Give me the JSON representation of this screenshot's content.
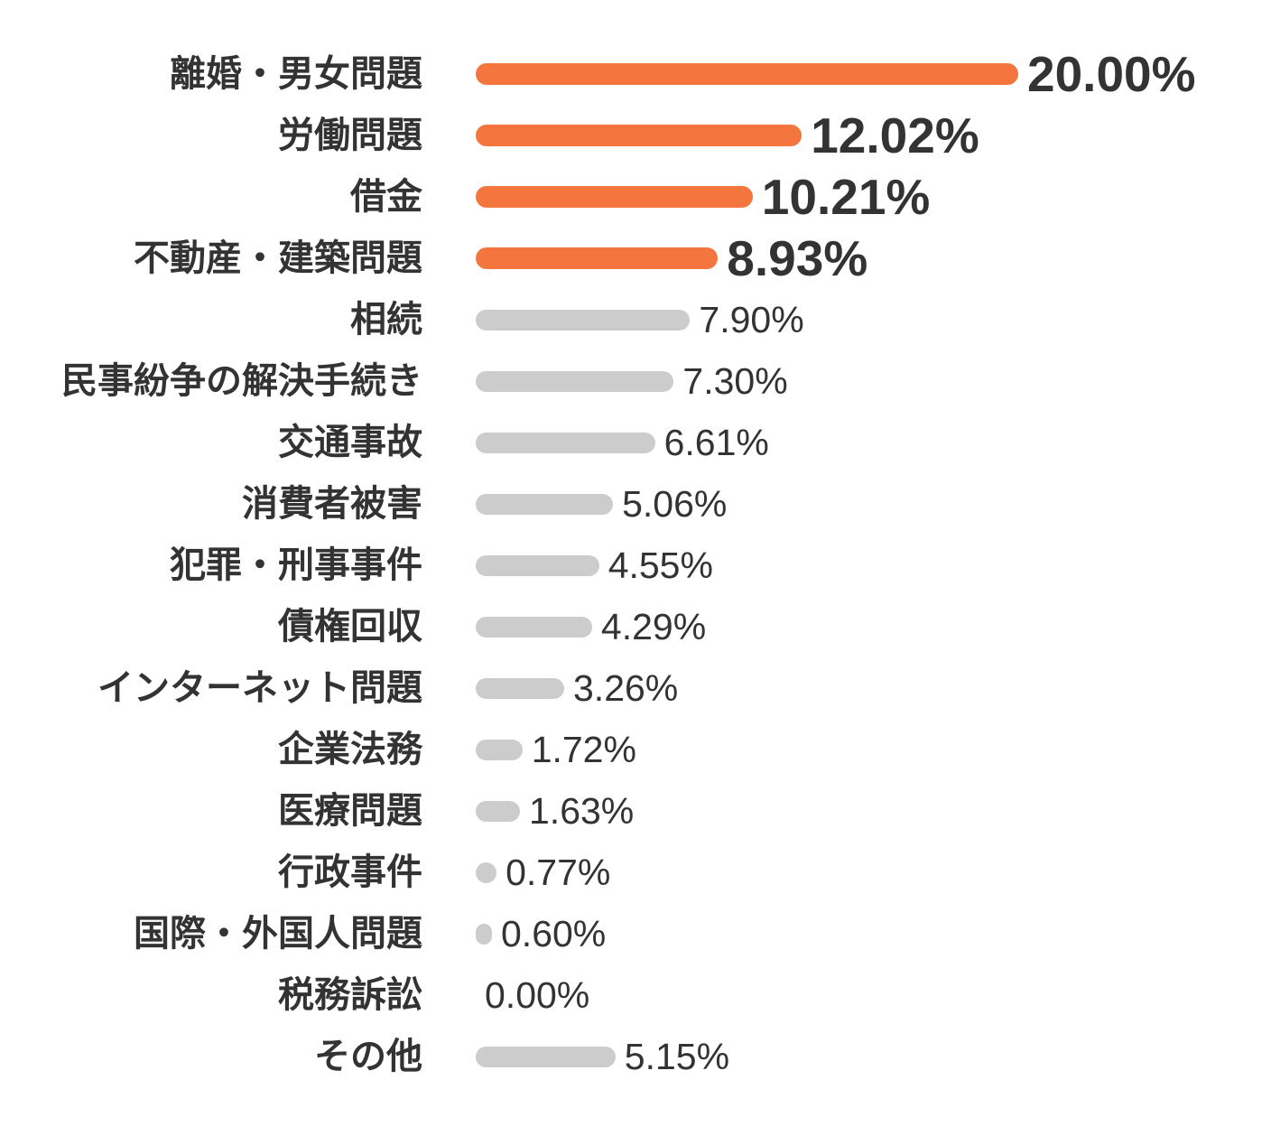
{
  "chart_data": {
    "type": "bar",
    "orientation": "horizontal",
    "unit": "%",
    "xlim": [
      0,
      20
    ],
    "grid": false,
    "legend": false,
    "colors": {
      "highlight_bar": "#f4763e",
      "bar": "#cccccc",
      "text": "#333333",
      "background": "#ffffff"
    },
    "categories": [
      "離婚・男女問題",
      "労働問題",
      "借金",
      "不動産・建築問題",
      "相続",
      "民事紛争の解決手続き",
      "交通事故",
      "消費者被害",
      "犯罪・刑事事件",
      "債権回収",
      "インターネット問題",
      "企業法務",
      "医療問題",
      "行政事件",
      "国際・外国人問題",
      "税務訴訟",
      "その他"
    ],
    "values": [
      20.0,
      12.02,
      10.21,
      8.93,
      7.9,
      7.3,
      6.61,
      5.06,
      4.55,
      4.29,
      3.26,
      1.72,
      1.63,
      0.77,
      0.6,
      0.0,
      5.15
    ],
    "items": [
      {
        "label": "離婚・男女問題",
        "value": 20.0,
        "display": "20.00%",
        "highlight": true
      },
      {
        "label": "労働問題",
        "value": 12.02,
        "display": "12.02%",
        "highlight": true
      },
      {
        "label": "借金",
        "value": 10.21,
        "display": "10.21%",
        "highlight": true
      },
      {
        "label": "不動産・建築問題",
        "value": 8.93,
        "display": "8.93%",
        "highlight": true
      },
      {
        "label": "相続",
        "value": 7.9,
        "display": "7.90%",
        "highlight": false
      },
      {
        "label": "民事紛争の解決手続き",
        "value": 7.3,
        "display": "7.30%",
        "highlight": false
      },
      {
        "label": "交通事故",
        "value": 6.61,
        "display": "6.61%",
        "highlight": false
      },
      {
        "label": "消費者被害",
        "value": 5.06,
        "display": "5.06%",
        "highlight": false
      },
      {
        "label": "犯罪・刑事事件",
        "value": 4.55,
        "display": "4.55%",
        "highlight": false
      },
      {
        "label": "債権回収",
        "value": 4.29,
        "display": "4.29%",
        "highlight": false
      },
      {
        "label": "インターネット問題",
        "value": 3.26,
        "display": "3.26%",
        "highlight": false
      },
      {
        "label": "企業法務",
        "value": 1.72,
        "display": "1.72%",
        "highlight": false
      },
      {
        "label": "医療問題",
        "value": 1.63,
        "display": "1.63%",
        "highlight": false
      },
      {
        "label": "行政事件",
        "value": 0.77,
        "display": "0.77%",
        "highlight": false
      },
      {
        "label": "国際・外国人問題",
        "value": 0.6,
        "display": "0.60%",
        "highlight": false
      },
      {
        "label": "税務訴訟",
        "value": 0.0,
        "display": "0.00%",
        "highlight": false
      },
      {
        "label": "その他",
        "value": 5.15,
        "display": "5.15%",
        "highlight": false
      }
    ]
  }
}
